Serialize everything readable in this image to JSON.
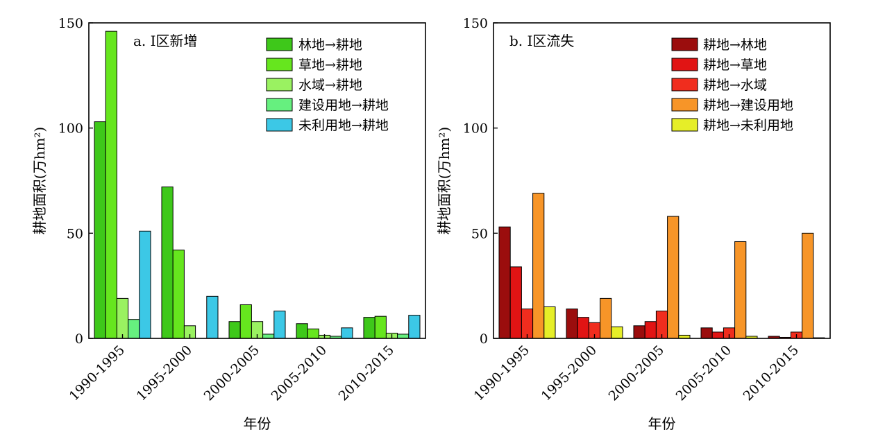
{
  "chart_data": [
    {
      "type": "bar",
      "title": "a. Ⅰ区新增",
      "xlabel": "年份",
      "ylabel": "耕地面积(万hm²)",
      "ylim": [
        0,
        150
      ],
      "yticks": [
        0,
        50,
        100,
        150
      ],
      "grid": false,
      "legend_position": "top-right",
      "categories": [
        "1990-1995",
        "1995-2000",
        "2000-2005",
        "2005-2010",
        "2010-2015"
      ],
      "series": [
        {
          "name": "林地→耕地",
          "color": "#3ec81a",
          "values": [
            103,
            72,
            8,
            7,
            10
          ]
        },
        {
          "name": "草地→耕地",
          "color": "#66e61e",
          "values": [
            146,
            42,
            16,
            4.5,
            10.5
          ]
        },
        {
          "name": "水域→耕地",
          "color": "#9af261",
          "values": [
            19,
            6,
            8,
            1.5,
            2.5
          ]
        },
        {
          "name": "建设用地→耕地",
          "color": "#66f07f",
          "values": [
            9,
            0,
            2,
            1,
            2
          ]
        },
        {
          "name": "未利用地→耕地",
          "color": "#3cc8e6",
          "values": [
            51,
            20,
            13,
            5,
            11
          ]
        }
      ]
    },
    {
      "type": "bar",
      "title": "b. Ⅰ区流失",
      "xlabel": "年份",
      "ylabel": "耕地面积(万hm²)",
      "ylim": [
        0,
        150
      ],
      "yticks": [
        0,
        50,
        100,
        150
      ],
      "grid": false,
      "legend_position": "top-right",
      "categories": [
        "1990-1995",
        "1995-2000",
        "2000-2005",
        "2005-2010",
        "2010-2015"
      ],
      "series": [
        {
          "name": "耕地→林地",
          "color": "#9b0d0d",
          "values": [
            53,
            14,
            6,
            5,
            1
          ]
        },
        {
          "name": "耕地→草地",
          "color": "#e11414",
          "values": [
            34,
            10,
            8,
            3,
            0.5
          ]
        },
        {
          "name": "耕地→水域",
          "color": "#f02d1e",
          "values": [
            14,
            7.5,
            13,
            5,
            3
          ]
        },
        {
          "name": "耕地→建设用地",
          "color": "#f79528",
          "values": [
            69,
            19,
            58,
            46,
            50
          ]
        },
        {
          "name": "耕地→未利用地",
          "color": "#e6ee28",
          "values": [
            15,
            5.5,
            1.5,
            1,
            0.3
          ]
        }
      ]
    }
  ]
}
